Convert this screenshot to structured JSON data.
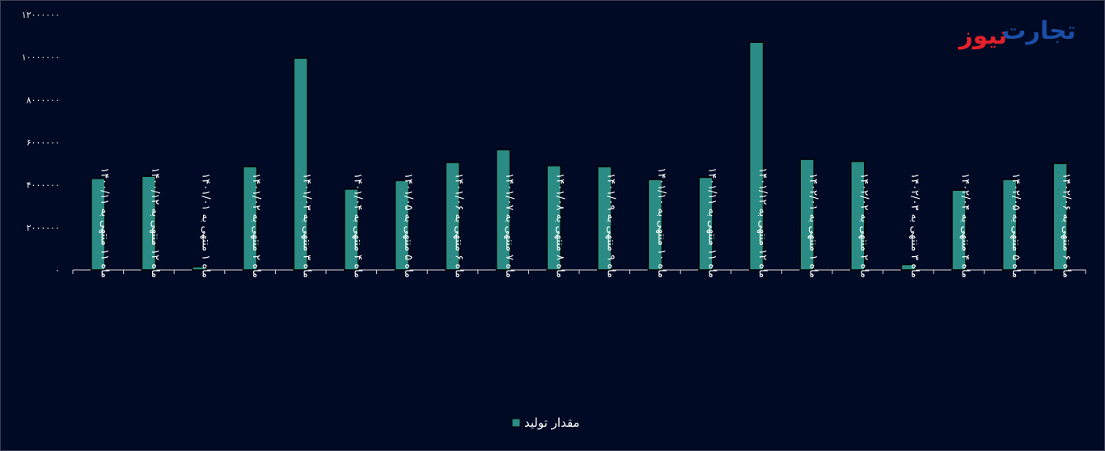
{
  "logo": {
    "part1": "تجارت",
    "part2": "نیوز"
  },
  "colors": {
    "bar": "#2a8c84",
    "bar_stroke": "#000000",
    "axis": "#d9d9d9",
    "background": "#000a24"
  },
  "chart_data": {
    "type": "bar",
    "title": "",
    "xlabel": "",
    "ylabel": "",
    "ylim": [
      0,
      12000000
    ],
    "yticks": [
      0,
      2000000,
      4000000,
      6000000,
      8000000,
      10000000,
      12000000
    ],
    "ytick_labels": [
      "۰",
      "۲۰۰۰۰۰۰",
      "۴۰۰۰۰۰۰",
      "۶۰۰۰۰۰۰",
      "۸۰۰۰۰۰۰",
      "۱۰۰۰۰۰۰۰",
      "۱۲۰۰۰۰۰۰"
    ],
    "grid": false,
    "legend_position": "bottom",
    "categories": [
      "ماه ۱۱ منتهی به ۱۴۰۰/۱۱",
      "ماه ۱۲ منتهی به ۱۴۰۰/۱۲",
      "ماه ۱ منتهی به ۱۴۰۱/۰۱",
      "ماه ۲ منتهی به ۱۴۰۱/۰۲",
      "ماه ۳ منتهی به ۱۴۰۱/۰۳",
      "ماه ۴ منتهی به ۱۴۰۱/۰۴",
      "ماه ۵ منتهی به ۱۴۰۱/۰۵",
      "ماه ۶ منتهی به ۱۴۰۱/۰۶",
      "ماه ۷ منتهی به ۱۴۰۱/۰۷",
      "ماه ۸ منتهی به ۱۴۰۱/۰۸",
      "ماه ۹ منتهی به ۱۴۰۱/۰۹",
      "ماه ۱۰ منتهی به ۱۴۰۱/۱۰",
      "ماه ۱۱ منتهی به ۱۴۰۱/۱۱",
      "ماه ۱۲ منتهی به ۱۴۰۱/۱۲",
      "ماه ۱ منتهی به ۱۴۰۲/۰۱",
      "ماه ۲ منتهی به ۱۴۰۲/۰۲",
      "ماه ۳ منتهی به ۱۴۰۲/۰۳",
      "ماه ۴ منتهی به ۱۴۰۲/۰۴",
      "ماه ۵ منتهی به ۱۴۰۲/۰۵",
      "ماه ۶ منتهی به ۱۴۰۲/۰۶"
    ],
    "series": [
      {
        "name": "مقدار تولید",
        "values": [
          4300000,
          4400000,
          150000,
          4850000,
          9950000,
          3800000,
          4200000,
          5050000,
          5650000,
          4900000,
          4850000,
          4250000,
          4350000,
          10700000,
          5200000,
          5100000,
          250000,
          3750000,
          4250000,
          5000000
        ]
      }
    ]
  }
}
